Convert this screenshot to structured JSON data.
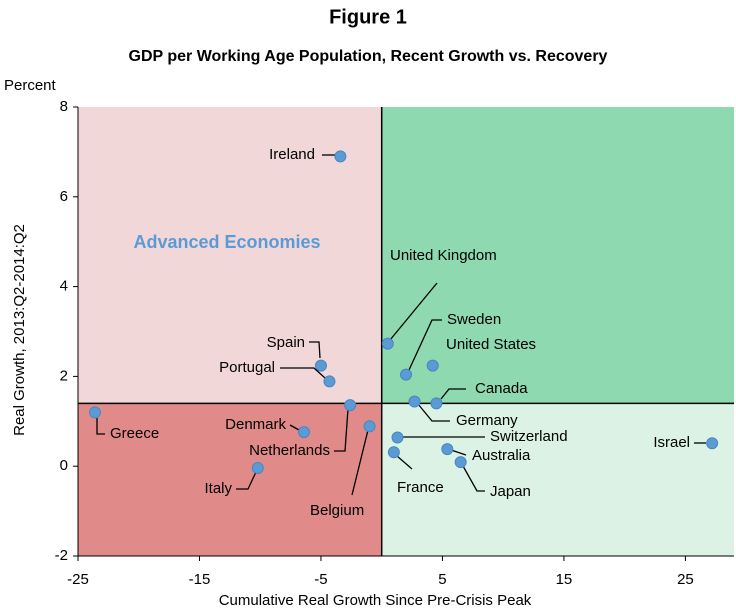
{
  "chart_data": {
    "type": "scatter",
    "title": "Figure 1",
    "subtitle": "GDP per Working Age Population, Recent Growth vs. Recovery",
    "y_unit": "Percent",
    "xlabel": "Cumulative Real Growth Since Pre-Crisis Peak",
    "ylabel": "Real Growth, 2013:Q2-2014:Q2",
    "annotation": "Advanced Economies",
    "annotation_color": "#5b9bd5",
    "color": "#5b9bd5",
    "xlim": [
      -25,
      29
    ],
    "ylim": [
      -2,
      8
    ],
    "xticks": [
      -25,
      -15,
      -5,
      5,
      15,
      25
    ],
    "yticks": [
      -2,
      0,
      2,
      4,
      6,
      8
    ],
    "reference_lines": {
      "x": 0,
      "y": 1.4
    },
    "quadrant_colors": {
      "top_left": "#f2d7d9",
      "top_right": "#8ed9b0",
      "bottom_left": "#e08a8a",
      "bottom_right": "#dcf2e4"
    },
    "labels": [
      "Ireland",
      "Spain",
      "Portugal",
      "United Kingdom",
      "Sweden",
      "United States",
      "Canada",
      "Germany",
      "Switzerland",
      "Australia",
      "France",
      "Japan",
      "Israel",
      "Greece",
      "Denmark",
      "Netherlands",
      "Belgium",
      "Italy"
    ],
    "x": [
      -3.4,
      -5.0,
      -4.3,
      0.5,
      2.0,
      4.2,
      4.5,
      2.7,
      1.3,
      5.4,
      1.0,
      6.5,
      27.2,
      -23.6,
      -6.4,
      -2.6,
      -1.0,
      -10.2
    ],
    "values": [
      6.9,
      2.24,
      1.89,
      2.73,
      2.04,
      2.24,
      1.4,
      1.44,
      0.64,
      0.38,
      0.31,
      0.09,
      0.51,
      1.2,
      0.76,
      1.36,
      0.89,
      -0.04
    ]
  }
}
